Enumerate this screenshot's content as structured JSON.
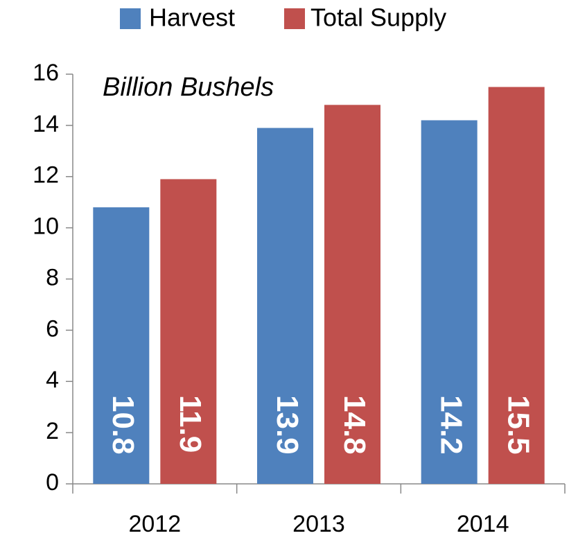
{
  "chart_data": {
    "type": "bar",
    "annotation": "Billion Bushels",
    "categories": [
      "2012",
      "2013",
      "2014"
    ],
    "series": [
      {
        "name": "Harvest",
        "color": "#4f81bd",
        "values": [
          10.8,
          13.9,
          14.2
        ]
      },
      {
        "name": "Total Supply",
        "color": "#c0504d",
        "values": [
          11.9,
          14.8,
          15.5
        ]
      }
    ],
    "ylim": [
      0,
      16
    ],
    "yticks": [
      0,
      2,
      4,
      6,
      8,
      10,
      12,
      14,
      16
    ],
    "legend": "top",
    "grid": false,
    "data_labels": true
  }
}
